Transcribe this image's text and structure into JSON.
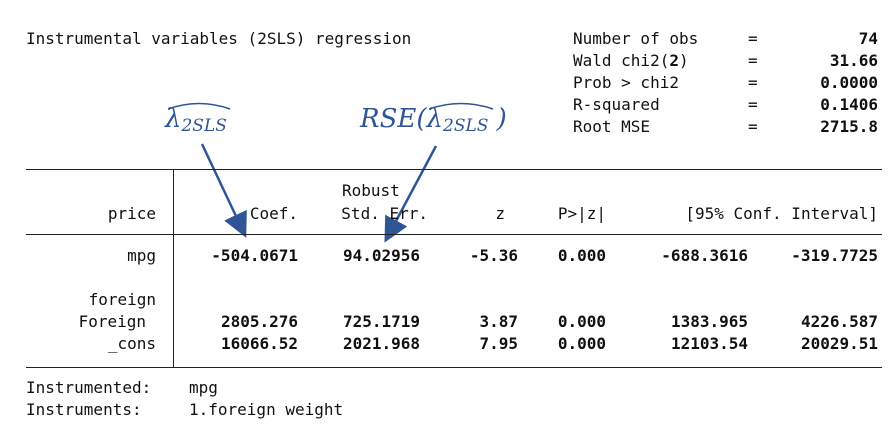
{
  "title": "Instrumental variables (2SLS) regression",
  "stats": [
    {
      "label": "Number of obs",
      "eq": "=",
      "value": "74"
    },
    {
      "label": "Wald chi2(",
      "label_bold": "2",
      "label_close": ")",
      "eq": "=",
      "value": "31.66"
    },
    {
      "label": "Prob > chi2",
      "eq": "=",
      "value": "0.0000"
    },
    {
      "label": "R-squared",
      "eq": "=",
      "value": "0.1406"
    },
    {
      "label": "Root MSE",
      "eq": "=",
      "value": "2715.8"
    }
  ],
  "annotations": {
    "coef_label": "λ",
    "coef_sub": "2SLS",
    "rse_prefix": "RSE(",
    "rse_lambda": "λ",
    "rse_sub": "2SLS",
    "rse_suffix": " )",
    "color": "#2f5597"
  },
  "table": {
    "depvar": "price",
    "robust_label": "Robust",
    "headers": {
      "coef": "Coef.",
      "se": "Std. Err.",
      "z": "z",
      "p": "P>|z|",
      "ci": "[95% Conf. Interval]"
    },
    "rows": [
      {
        "var": "mpg",
        "coef": "-504.0671",
        "se": "94.02956",
        "z": "-5.36",
        "p": "0.000",
        "lo": "-688.3616",
        "hi": "-319.7725"
      },
      {
        "var": "foreign",
        "group": true
      },
      {
        "var": "Foreign",
        "coef": "2805.276",
        "se": "725.1719",
        "z": "3.87",
        "p": "0.000",
        "lo": "1383.965",
        "hi": "4226.587"
      },
      {
        "var": "_cons",
        "coef": "16066.52",
        "se": "2021.968",
        "z": "7.95",
        "p": "0.000",
        "lo": "12103.54",
        "hi": "20029.51"
      }
    ]
  },
  "footer": {
    "instrumented_label": "Instrumented:",
    "instrumented_value": "mpg",
    "instruments_label": "Instruments:",
    "instruments_value": "1.foreign weight"
  }
}
